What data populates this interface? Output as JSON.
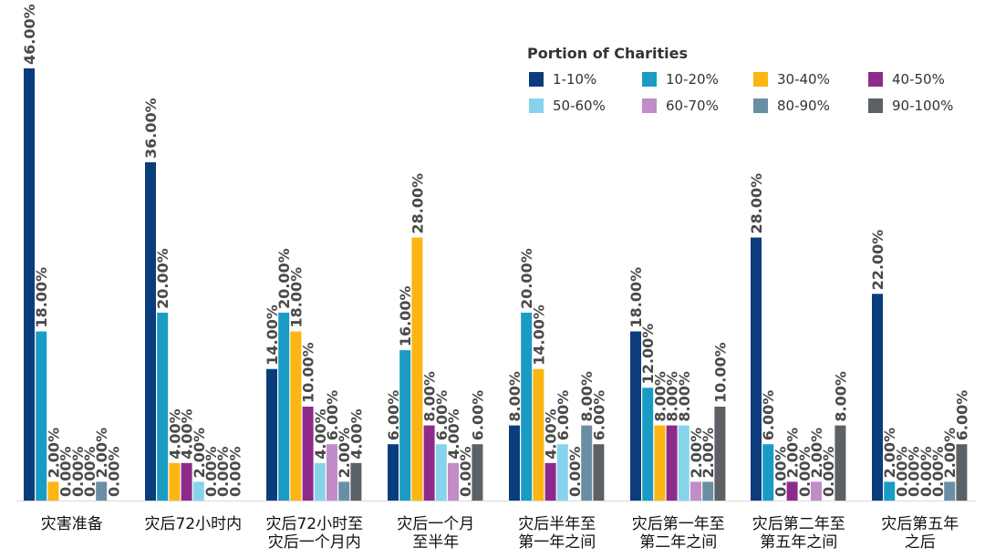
{
  "chart_data": {
    "type": "bar",
    "legend_title": "Portion of Charities",
    "legend_position": "top-right",
    "categories": [
      [
        "灾害准备"
      ],
      [
        "灾后72小时内"
      ],
      [
        "灾后72小时至",
        "灾后一个月内"
      ],
      [
        "灾后一个月",
        "至半年"
      ],
      [
        "灾后半年至",
        "第一年之间"
      ],
      [
        "灾后第一年至",
        "第二年之间"
      ],
      [
        "灾后第二年至",
        "第五年之间"
      ],
      [
        "灾后第五年",
        "之后"
      ]
    ],
    "series": [
      {
        "name": "1-10%",
        "color": "#0b3d7c",
        "values": [
          46,
          36,
          14,
          6,
          8,
          18,
          28,
          22
        ]
      },
      {
        "name": "10-20%",
        "color": "#1a9bc4",
        "values": [
          18,
          20,
          20,
          16,
          20,
          12,
          6,
          2
        ]
      },
      {
        "name": "30-40%",
        "color": "#fbb614",
        "values": [
          2,
          4,
          18,
          28,
          14,
          8,
          0,
          0
        ]
      },
      {
        "name": "40-50%",
        "color": "#8e2a8c",
        "values": [
          0,
          4,
          10,
          8,
          4,
          8,
          2,
          0
        ]
      },
      {
        "name": "50-60%",
        "color": "#87d3ec",
        "values": [
          0,
          2,
          4,
          6,
          6,
          8,
          0,
          0
        ]
      },
      {
        "name": "60-70%",
        "color": "#c18cc7",
        "values": [
          0,
          0,
          6,
          4,
          0,
          2,
          2,
          0
        ]
      },
      {
        "name": "80-90%",
        "color": "#6a8fa5",
        "values": [
          2,
          0,
          2,
          0,
          8,
          2,
          0,
          2
        ]
      },
      {
        "name": "90-100%",
        "color": "#5c6166",
        "values": [
          0,
          0,
          4,
          6,
          6,
          10,
          8,
          6
        ]
      }
    ],
    "ylim": [
      0,
      46
    ],
    "value_format_suffix": "%",
    "grid": false,
    "title": "",
    "xlabel": "",
    "ylabel": ""
  }
}
